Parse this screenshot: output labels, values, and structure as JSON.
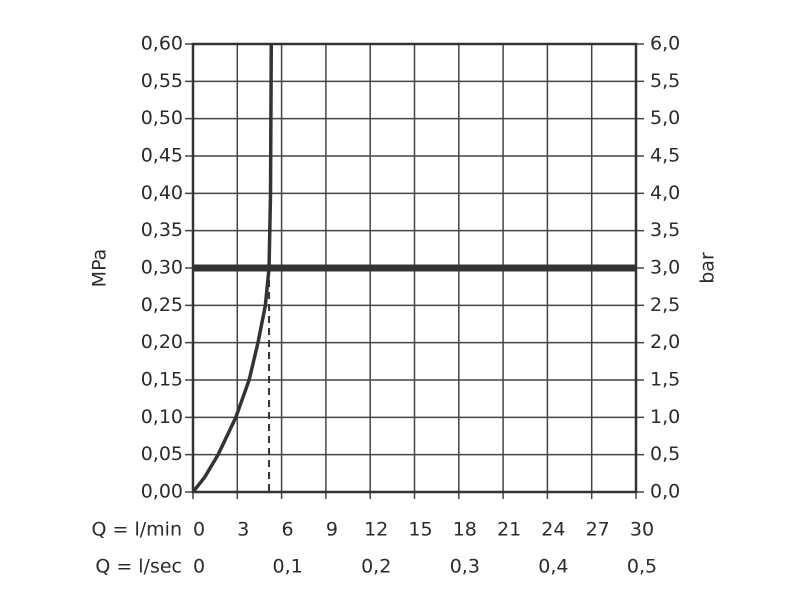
{
  "chart_data": {
    "type": "line",
    "y_label": "MPa",
    "y2_label": "bar",
    "x_label": "Q = l/min",
    "x2_label": "Q = l/sec",
    "xlim": [
      0,
      30
    ],
    "xticks": [
      0,
      3,
      6,
      9,
      12,
      15,
      18,
      21,
      24,
      27,
      30
    ],
    "x2lim": [
      0,
      0.5
    ],
    "x2ticks": [
      0,
      {
        "value": 0.1,
        "label": "0,1"
      },
      {
        "value": 0.2,
        "label": "0,2"
      },
      {
        "value": 0.3,
        "label": "0,3"
      },
      {
        "value": 0.4,
        "label": "0,4"
      },
      {
        "value": 0.5,
        "label": "0,5"
      }
    ],
    "ylim": [
      0,
      0.6
    ],
    "yticks": [
      {
        "value": 0,
        "label": "0,00"
      },
      {
        "value": 0.05,
        "label": "0,05"
      },
      {
        "value": 0.1,
        "label": "0,10"
      },
      {
        "value": 0.15,
        "label": "0,15"
      },
      {
        "value": 0.2,
        "label": "0,20"
      },
      {
        "value": 0.25,
        "label": "0,25"
      },
      {
        "value": 0.3,
        "label": "0,30"
      },
      {
        "value": 0.35,
        "label": "0,35"
      },
      {
        "value": 0.4,
        "label": "0,40"
      },
      {
        "value": 0.45,
        "label": "0,45"
      },
      {
        "value": 0.5,
        "label": "0,50"
      },
      {
        "value": 0.55,
        "label": "0,55"
      },
      {
        "value": 0.6,
        "label": "0,60"
      }
    ],
    "y2lim": [
      0,
      6
    ],
    "y2ticks": [
      {
        "value": 0,
        "label": "0,0"
      },
      {
        "value": 0.5,
        "label": "0,5"
      },
      {
        "value": 1,
        "label": "1,0"
      },
      {
        "value": 1.5,
        "label": "1,5"
      },
      {
        "value": 2,
        "label": "2,0"
      },
      {
        "value": 2.5,
        "label": "2,5"
      },
      {
        "value": 3,
        "label": "3,0"
      },
      {
        "value": 3.5,
        "label": "3,5"
      },
      {
        "value": 4,
        "label": "4,0"
      },
      {
        "value": 4.5,
        "label": "4,5"
      },
      {
        "value": 5,
        "label": "5,0"
      },
      {
        "value": 5.5,
        "label": "5,5"
      },
      {
        "value": 6,
        "label": "6,0"
      }
    ],
    "grid": true,
    "x": [
      0,
      0.8,
      1.7,
      2.9,
      3.8,
      4.4,
      4.9,
      5.15,
      5.25,
      5.3
    ],
    "series": [
      {
        "color": "#333333",
        "values": [
          0,
          0.02,
          0.05,
          0.1,
          0.15,
          0.2,
          0.25,
          0.3,
          0.4,
          0.6
        ]
      }
    ],
    "reference_y": 0.3,
    "reference_x": 5.15
  }
}
